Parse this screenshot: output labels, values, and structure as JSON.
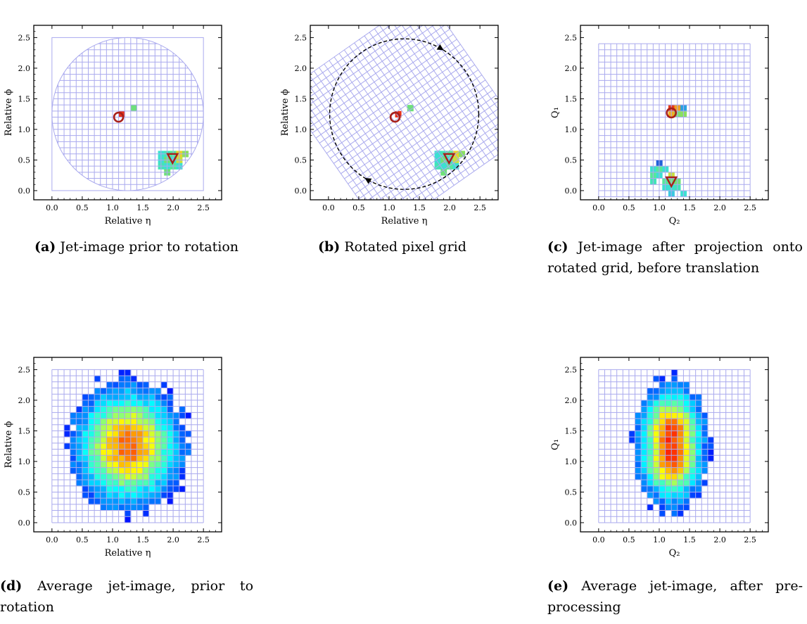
{
  "figure": {
    "panels": [
      {
        "id": "a",
        "tag": "(a)",
        "caption": "Jet-image prior to rotation"
      },
      {
        "id": "b",
        "tag": "(b)",
        "caption": "Rotated pixel grid"
      },
      {
        "id": "c",
        "tag": "(c)",
        "caption": "Jet-image after projection onto rotated grid, before translation"
      },
      {
        "id": "d",
        "tag": "(d)",
        "caption": "Average jet-image, prior to rotation"
      },
      {
        "id": "e",
        "tag": "(e)",
        "caption": "Average jet-image, after pre-processing"
      }
    ]
  },
  "chart_data": [
    {
      "id": "a",
      "type": "heatmap",
      "xlabel": "Relative η",
      "ylabel": "Relative ϕ",
      "xlim": [
        -0.3,
        2.8
      ],
      "ylim": [
        -0.15,
        2.7
      ],
      "xticks": [
        "0.0",
        "0.5",
        "1.0",
        "1.5",
        "2.0",
        "2.5"
      ],
      "yticks": [
        "0.0",
        "0.5",
        "1.0",
        "1.5",
        "2.0",
        "2.5"
      ],
      "grid": "circular 25x25 pixel grid, pitch 0.1, circle radius 1.25 centered at (1.25,1.25)",
      "cells": [
        [
          1.15,
          1.25,
          "#e8321a"
        ],
        [
          1.35,
          1.35,
          "#6ee07a"
        ],
        [
          1.8,
          0.6,
          "#3ce0d2"
        ],
        [
          1.9,
          0.6,
          "#44e4b8"
        ],
        [
          2.0,
          0.6,
          "#56e89a"
        ],
        [
          2.1,
          0.6,
          "#e8d42a"
        ],
        [
          2.2,
          0.6,
          "#8ae060"
        ],
        [
          1.8,
          0.5,
          "#3ce0d2"
        ],
        [
          1.9,
          0.5,
          "#6ee07a"
        ],
        [
          2.0,
          0.5,
          "#3ce0d2"
        ],
        [
          2.1,
          0.5,
          "#c8e040"
        ],
        [
          1.8,
          0.4,
          "#44e4b8"
        ],
        [
          1.9,
          0.4,
          "#3ce0d2"
        ],
        [
          2.0,
          0.4,
          "#56e89a"
        ],
        [
          2.1,
          0.4,
          "#3ce0d2"
        ],
        [
          1.9,
          0.3,
          "#6ee07a"
        ]
      ],
      "markers": [
        {
          "shape": "circle",
          "x": 1.1,
          "y": 1.2
        },
        {
          "shape": "triangle-down",
          "x": 1.99,
          "y": 0.53
        }
      ]
    },
    {
      "id": "b",
      "type": "heatmap",
      "xlabel": "Relative η",
      "ylabel": "Relative ϕ",
      "xlim": [
        -0.3,
        2.8
      ],
      "ylim": [
        -0.15,
        2.7
      ],
      "xticks": [
        "0.0",
        "0.5",
        "1.0",
        "1.5",
        "2.0",
        "2.5"
      ],
      "yticks": [
        "0.0",
        "0.5",
        "1.0",
        "1.5",
        "2.0",
        "2.5"
      ],
      "grid": "pixel grid rotated about (1.25,1.25)",
      "rotation_deg": -35,
      "circle": {
        "cx": 1.25,
        "cy": 1.25,
        "r": 1.23,
        "style": "dashed",
        "arrows": "clockwise"
      },
      "cells": [
        [
          1.15,
          1.25,
          "#e8321a"
        ],
        [
          1.35,
          1.35,
          "#6ee07a"
        ],
        [
          1.8,
          0.6,
          "#3ce0d2"
        ],
        [
          1.9,
          0.6,
          "#44e4b8"
        ],
        [
          2.0,
          0.6,
          "#56e89a"
        ],
        [
          2.1,
          0.6,
          "#e8d42a"
        ],
        [
          2.2,
          0.6,
          "#8ae060"
        ],
        [
          1.8,
          0.5,
          "#3ce0d2"
        ],
        [
          1.9,
          0.5,
          "#6ee07a"
        ],
        [
          2.0,
          0.5,
          "#3ce0d2"
        ],
        [
          2.1,
          0.5,
          "#c8e040"
        ],
        [
          1.8,
          0.4,
          "#44e4b8"
        ],
        [
          1.9,
          0.4,
          "#3ce0d2"
        ],
        [
          2.0,
          0.4,
          "#56e89a"
        ],
        [
          2.1,
          0.4,
          "#3ce0d2"
        ],
        [
          1.9,
          0.3,
          "#6ee07a"
        ]
      ],
      "markers": [
        {
          "shape": "circle",
          "x": 1.1,
          "y": 1.2
        },
        {
          "shape": "triangle-down",
          "x": 1.99,
          "y": 0.53
        }
      ]
    },
    {
      "id": "c",
      "type": "heatmap",
      "xlabel": "Q₂",
      "ylabel": "Q₁",
      "xlim": [
        -0.3,
        2.8
      ],
      "ylim": [
        -0.15,
        2.7
      ],
      "xticks": [
        "0.0",
        "0.5",
        "1.0",
        "1.5",
        "2.0",
        "2.5"
      ],
      "yticks": [
        "0.0",
        "0.5",
        "1.0",
        "1.5",
        "2.0",
        "2.5"
      ],
      "grid": "square 25x25 pixel grid, pitch 0.1",
      "cells": [
        [
          1.2,
          1.35,
          "#e83c1a"
        ],
        [
          1.3,
          1.35,
          "#f0a020"
        ],
        [
          1.4,
          1.35,
          "#2aa0e0"
        ],
        [
          1.2,
          1.25,
          "#f0b020"
        ],
        [
          1.3,
          1.25,
          "#7ee070"
        ],
        [
          1.4,
          1.25,
          "#8ae060"
        ],
        [
          1.0,
          0.45,
          "#2060d8"
        ],
        [
          0.9,
          0.35,
          "#3ce0d2"
        ],
        [
          1.0,
          0.35,
          "#56e89a"
        ],
        [
          1.1,
          0.35,
          "#3ce0d2"
        ],
        [
          0.9,
          0.25,
          "#56e89a"
        ],
        [
          1.0,
          0.25,
          "#3ce0d2"
        ],
        [
          1.2,
          0.25,
          "#c8e040"
        ],
        [
          0.9,
          0.15,
          "#44e4b8"
        ],
        [
          1.1,
          0.15,
          "#56e89a"
        ],
        [
          1.2,
          0.15,
          "#6ee07a"
        ],
        [
          1.3,
          0.15,
          "#6ee07a"
        ],
        [
          1.1,
          0.05,
          "#3ce0d2"
        ],
        [
          1.2,
          0.05,
          "#3ce0d2"
        ],
        [
          1.3,
          0.05,
          "#44e4b8"
        ],
        [
          1.2,
          -0.05,
          "#3cc8e0"
        ],
        [
          1.4,
          -0.05,
          "#3ce0d2"
        ]
      ],
      "markers": [
        {
          "shape": "circle",
          "x": 1.2,
          "y": 1.27
        },
        {
          "shape": "triangle-down",
          "x": 1.2,
          "y": 0.15
        }
      ]
    },
    {
      "id": "d",
      "type": "heatmap",
      "xlabel": "Relative η",
      "ylabel": "Relative ϕ",
      "xlim": [
        -0.3,
        2.8
      ],
      "ylim": [
        -0.15,
        2.7
      ],
      "xticks": [
        "0.0",
        "0.5",
        "1.0",
        "1.5",
        "2.0",
        "2.5"
      ],
      "yticks": [
        "0.0",
        "0.5",
        "1.0",
        "1.5",
        "2.0",
        "2.5"
      ],
      "grid": "square 25x25 pixel grid, pitch 0.1",
      "distribution": {
        "center": [
          1.25,
          1.25
        ],
        "sigma_eta": 0.5,
        "sigma_phi": 0.55,
        "peak_color": "#f08a20",
        "edge_color": "#00109a"
      }
    },
    {
      "id": "e",
      "type": "heatmap",
      "xlabel": "Q₂",
      "ylabel": "Q₁",
      "xlim": [
        -0.3,
        2.8
      ],
      "ylim": [
        -0.15,
        2.7
      ],
      "xticks": [
        "0.0",
        "0.5",
        "1.0",
        "1.5",
        "2.0",
        "2.5"
      ],
      "yticks": [
        "0.0",
        "0.5",
        "1.0",
        "1.5",
        "2.0",
        "2.5"
      ],
      "grid": "square 25x25 pixel grid, pitch 0.1",
      "distribution": {
        "lobes": [
          {
            "x": 1.2,
            "y": 1.6
          },
          {
            "x": 1.2,
            "y": 0.95
          }
        ],
        "sigma_q2": 0.3,
        "sigma_q1": 0.62,
        "peak_color": "#f07a20",
        "edge_color": "#00109a"
      }
    }
  ],
  "colors": {
    "grid": "#aaaaee",
    "marker": "#a8201a",
    "frame": "#000000"
  }
}
